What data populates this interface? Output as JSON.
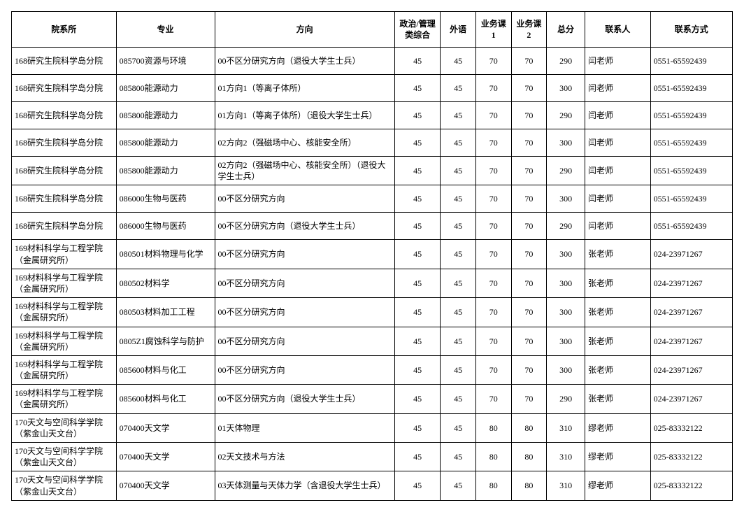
{
  "columns": [
    "院系所",
    "专业",
    "方向",
    "政治/管理类综合",
    "外语",
    "业务课1",
    "业务课2",
    "总分",
    "联系人",
    "联系方式"
  ],
  "rows": [
    [
      "168研究生院科学岛分院",
      "085700资源与环境",
      "00不区分研究方向（退役大学生士兵）",
      "45",
      "45",
      "70",
      "70",
      "290",
      "闫老师",
      "0551-65592439"
    ],
    [
      "168研究生院科学岛分院",
      "085800能源动力",
      "01方向1（等离子体所）",
      "45",
      "45",
      "70",
      "70",
      "300",
      "闫老师",
      "0551-65592439"
    ],
    [
      "168研究生院科学岛分院",
      "085800能源动力",
      "01方向1（等离子体所）（退役大学生士兵）",
      "45",
      "45",
      "70",
      "70",
      "290",
      "闫老师",
      "0551-65592439"
    ],
    [
      "168研究生院科学岛分院",
      "085800能源动力",
      "02方向2（强磁场中心、核能安全所）",
      "45",
      "45",
      "70",
      "70",
      "300",
      "闫老师",
      "0551-65592439"
    ],
    [
      "168研究生院科学岛分院",
      "085800能源动力",
      "02方向2（强磁场中心、核能安全所）（退役大学生士兵）",
      "45",
      "45",
      "70",
      "70",
      "290",
      "闫老师",
      "0551-65592439"
    ],
    [
      "168研究生院科学岛分院",
      "086000生物与医药",
      "00不区分研究方向",
      "45",
      "45",
      "70",
      "70",
      "300",
      "闫老师",
      "0551-65592439"
    ],
    [
      "168研究生院科学岛分院",
      "086000生物与医药",
      "00不区分研究方向（退役大学生士兵）",
      "45",
      "45",
      "70",
      "70",
      "290",
      "闫老师",
      "0551-65592439"
    ],
    [
      "169材料科学与工程学院（金属研究所）",
      "080501材料物理与化学",
      "00不区分研究方向",
      "45",
      "45",
      "70",
      "70",
      "300",
      "张老师",
      "024-23971267"
    ],
    [
      "169材料科学与工程学院（金属研究所）",
      "080502材料学",
      "00不区分研究方向",
      "45",
      "45",
      "70",
      "70",
      "300",
      "张老师",
      "024-23971267"
    ],
    [
      "169材料科学与工程学院（金属研究所）",
      "080503材料加工工程",
      "00不区分研究方向",
      "45",
      "45",
      "70",
      "70",
      "300",
      "张老师",
      "024-23971267"
    ],
    [
      "169材料科学与工程学院（金属研究所）",
      "0805Z1腐蚀科学与防护",
      "00不区分研究方向",
      "45",
      "45",
      "70",
      "70",
      "300",
      "张老师",
      "024-23971267"
    ],
    [
      "169材料科学与工程学院（金属研究所）",
      "085600材料与化工",
      "00不区分研究方向",
      "45",
      "45",
      "70",
      "70",
      "300",
      "张老师",
      "024-23971267"
    ],
    [
      "169材料科学与工程学院（金属研究所）",
      "085600材料与化工",
      "00不区分研究方向（退役大学生士兵）",
      "45",
      "45",
      "70",
      "70",
      "290",
      "张老师",
      "024-23971267"
    ],
    [
      "170天文与空间科学学院（紫金山天文台）",
      "070400天文学",
      "01天体物理",
      "45",
      "45",
      "80",
      "80",
      "310",
      "缪老师",
      "025-83332122"
    ],
    [
      "170天文与空间科学学院（紫金山天文台）",
      "070400天文学",
      "02天文技术与方法",
      "45",
      "45",
      "80",
      "80",
      "310",
      "缪老师",
      "025-83332122"
    ],
    [
      "170天文与空间科学学院（紫金山天文台）",
      "070400天文学",
      "03天体测量与天体力学（含退役大学生士兵）",
      "45",
      "45",
      "80",
      "80",
      "310",
      "缪老师",
      "025-83332122"
    ]
  ]
}
